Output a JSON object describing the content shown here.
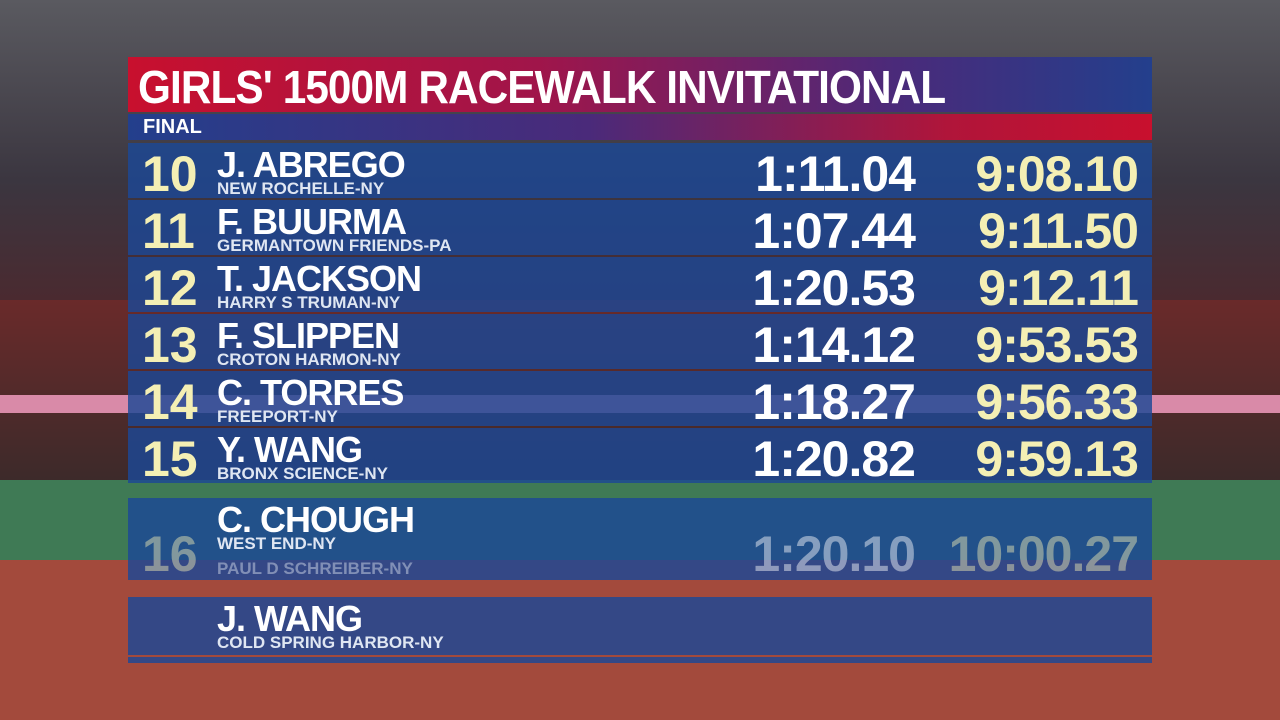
{
  "header": {
    "title": "GIRLS' 1500M RACEWALK INVITATIONAL",
    "subtitle": "FINAL"
  },
  "results": [
    {
      "place": "10",
      "name": "J. ABREGO",
      "school": "NEW ROCHELLE-NY",
      "split": "1:11.04",
      "time": "9:08.10"
    },
    {
      "place": "11",
      "name": "F. BUURMA",
      "school": "GERMANTOWN FRIENDS-PA",
      "split": "1:07.44",
      "time": "9:11.50"
    },
    {
      "place": "12",
      "name": "T. JACKSON",
      "school": "HARRY S TRUMAN-NY",
      "split": "1:20.53",
      "time": "9:12.11"
    },
    {
      "place": "13",
      "name": "F. SLIPPEN",
      "school": "CROTON HARMON-NY",
      "split": "1:14.12",
      "time": "9:53.53"
    },
    {
      "place": "14",
      "name": "C. TORRES",
      "school": "FREEPORT-NY",
      "split": "1:18.27",
      "time": "9:56.33"
    },
    {
      "place": "15",
      "name": "Y. WANG",
      "school": "BRONX SCIENCE-NY",
      "split": "1:20.82",
      "time": "9:59.13"
    }
  ],
  "outgoing": {
    "place": "16",
    "school": "PAUL D SCHREIBER-NY",
    "split": "1:20.10",
    "time": "10:00.27"
  },
  "incoming": [
    {
      "name": "C. CHOUGH",
      "school": "WEST END-NY"
    },
    {
      "name": "J. WANG",
      "school": "COLD SPRING HARBOR-NY"
    }
  ]
}
